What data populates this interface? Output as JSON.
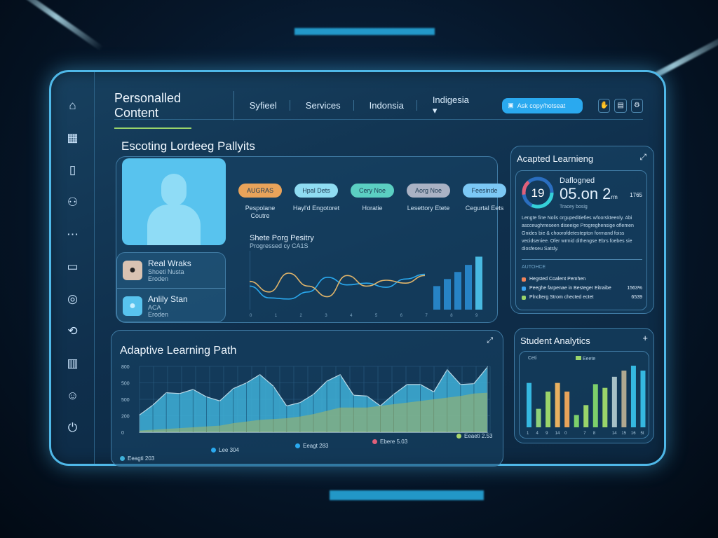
{
  "header": {
    "brand": "Personalled Content",
    "nav": [
      "Syfieel",
      "Services",
      "Indonsia",
      "Indigesia ▾"
    ],
    "search_placeholder": "Ask copy/hotseat",
    "icons": [
      "hand-icon",
      "save-icon",
      "settings-icon"
    ]
  },
  "sidebar": {
    "icons": [
      "home-icon",
      "calendar-icon",
      "book-icon",
      "users-icon",
      "more-icon",
      "inbox-icon",
      "target-icon",
      "share-icon",
      "document-icon",
      "user-icon",
      "power-icon"
    ]
  },
  "profile_section": {
    "title": "Escoting Lordeeg Pallyits",
    "tags": [
      {
        "label": "AUGRAS",
        "caption": "Pespolane Coutre",
        "color": "#e8a35a"
      },
      {
        "label": "Hpal Dets",
        "caption": "Hayl'd Engotoret",
        "color": "#8fdcf2"
      },
      {
        "label": "Cery Noe",
        "caption": "Horatie",
        "color": "#5bcfc2"
      },
      {
        "label": "Aorg Noe",
        "caption": "Lesettory Etete",
        "color": "#aab2c4"
      },
      {
        "label": "Feesinde",
        "caption": "Cegurtal Eets",
        "color": "#7cc8f5"
      }
    ],
    "users": [
      {
        "name": "Real Wraks",
        "sub": "Shoeti Nusta",
        "meta": "Eroden"
      },
      {
        "name": "Anlily Stan",
        "sub": "ACA",
        "meta": "Eroden"
      }
    ],
    "chart_title": "Shete Porg Pesitry",
    "chart_subtitle": "Progressed cy CA1S"
  },
  "adapted": {
    "title": "Acapted Learnieng",
    "ring_value": "19",
    "label": "Daflogned",
    "big": "05.on 2",
    "unit": "rm",
    "side": "1765",
    "caption": "Tracey bosig",
    "body": "Lengte fine Nolis orgupeditiefies wfoorskteenly. Abi ascceughrreseen diseeige Progreghensige oflemen Gnides bie & choorofdetestepton forrnand foiss vecidseniee. Ofer wrmid dithengse Ebrs foebes sie diosfeseu Satsly.",
    "list_title": "AUTOHCE",
    "items": [
      {
        "label": "Hegsted Coalent Pemhen",
        "value": "",
        "color": "#f0845a"
      },
      {
        "label": "Peeghe farpenae in Besteger Eitraibe",
        "value": "1563%",
        "color": "#3ca4f0"
      },
      {
        "label": "Plnclterg Strom chected ectet",
        "value": "6539",
        "color": "#9ad46a"
      }
    ]
  },
  "path": {
    "title": "Adaptive Learning Path",
    "legend": [
      {
        "label": "Eeagti 203",
        "color": "#3fb0d8"
      },
      {
        "label": "Lee 304",
        "color": "#2aa9ef"
      },
      {
        "label": "Eeagt 283",
        "color": "#2aa9ef"
      },
      {
        "label": "Ebere 5.03",
        "color": "#e0607a"
      },
      {
        "label": "Eeaeti 2.53",
        "color": "#a9d66b"
      }
    ]
  },
  "analytics": {
    "title": "Student Analytics",
    "legend": [
      "Ceti",
      "Eeete"
    ]
  },
  "chart_data": [
    {
      "type": "line",
      "title": "Shete Porg Pesitry",
      "x": [
        "0",
        "1",
        "2",
        "3",
        "4",
        "5",
        "6",
        "7",
        "8",
        "9"
      ],
      "series": [
        {
          "values": [
            40,
            20,
            18,
            30,
            55,
            42,
            45,
            38,
            52,
            60
          ],
          "color": "#2aa9ef"
        },
        {
          "values": [
            48,
            30,
            62,
            40,
            22,
            58,
            40,
            50,
            45,
            58
          ],
          "color": "#e0b46a"
        }
      ],
      "bars": [
        40,
        52,
        64,
        76,
        90
      ],
      "ylim": [
        0,
        100
      ]
    },
    {
      "type": "area",
      "yticks": [
        "0",
        "200",
        "500",
        "500",
        "800"
      ],
      "ylim": [
        0,
        800
      ],
      "series": [
        {
          "values": [
            210,
            330,
            480,
            470,
            520,
            430,
            380,
            530,
            600,
            700,
            560,
            320,
            360,
            460,
            620,
            700,
            450,
            440,
            320,
            460,
            580,
            580,
            490,
            760,
            580,
            590,
            790
          ],
          "color": "#3fb0d8"
        },
        {
          "values": [
            20,
            30,
            40,
            50,
            60,
            70,
            80,
            110,
            130,
            150,
            160,
            170,
            190,
            220,
            260,
            300,
            300,
            300,
            320,
            340,
            360,
            380,
            400,
            420,
            440,
            470,
            480
          ],
          "color": "#a9b860"
        }
      ]
    },
    {
      "type": "bar",
      "categories": [
        "1",
        "4",
        "9",
        "14",
        "0",
        "",
        "7",
        "8",
        "",
        "14",
        "15",
        "16",
        "5t"
      ],
      "values": [
        72,
        30,
        58,
        72,
        58,
        20,
        36,
        70,
        64,
        82,
        92,
        100,
        92
      ],
      "colors": [
        "#35b8e0",
        "#8fd07a",
        "#9ad46a",
        "#e8b060",
        "#e8a35a",
        "#7dd06a",
        "#9ad46a",
        "#7dd06a",
        "#9ad46a",
        "#a7c0c6",
        "#b0a890",
        "#35b8e0",
        "#35b8e0"
      ],
      "ylim": [
        0,
        100
      ]
    }
  ]
}
